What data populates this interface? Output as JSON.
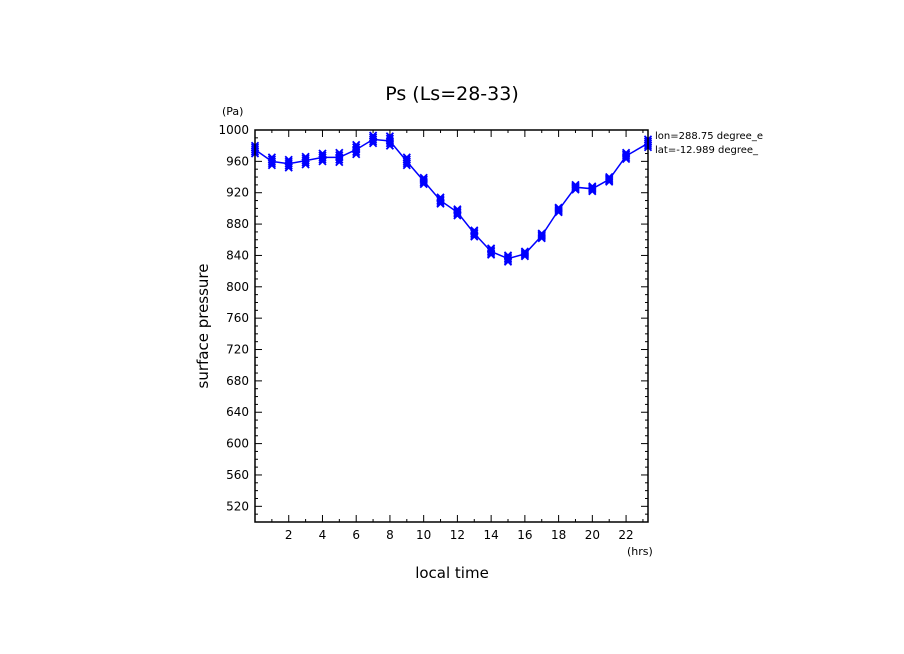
{
  "chart_data": {
    "type": "line",
    "title": "Ps (Ls=28-33)",
    "xlabel": "local time",
    "ylabel": "surface pressure",
    "x_unit": "(hrs)",
    "y_unit": "(Pa)",
    "xlim": [
      0,
      23.3
    ],
    "ylim": [
      500,
      1000
    ],
    "x_ticks": [
      2,
      4,
      6,
      8,
      10,
      12,
      14,
      16,
      18,
      20,
      22
    ],
    "y_ticks": [
      520,
      560,
      600,
      640,
      680,
      720,
      760,
      800,
      840,
      880,
      920,
      960,
      1000
    ],
    "grid": false,
    "series_color": "#0000ff",
    "annotations": [
      "lon=288.75 degree_e",
      "lat=-12.989 degree_"
    ],
    "series": [
      {
        "x": [
          0,
          1,
          2,
          3,
          4,
          5,
          6,
          7,
          8,
          9,
          10,
          11,
          12,
          13,
          14,
          15,
          16,
          17,
          18,
          19,
          20,
          21,
          22,
          23.3
        ],
        "y": [
          975,
          960,
          957,
          961,
          965,
          965,
          975,
          988,
          986,
          960,
          935,
          910,
          895,
          868,
          845,
          836,
          842,
          865,
          898,
          927,
          925,
          937,
          967,
          983
        ],
        "spread": [
          5,
          5,
          5,
          5,
          5,
          6,
          6,
          5,
          6,
          5,
          4,
          4,
          4,
          4,
          4,
          4,
          3,
          3,
          3,
          3,
          3,
          3,
          4,
          5
        ]
      }
    ]
  }
}
